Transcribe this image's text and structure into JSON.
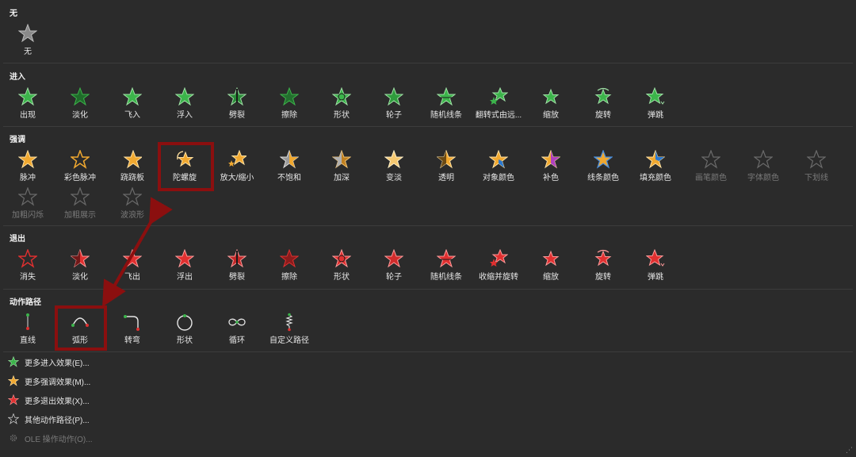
{
  "sections": {
    "none": {
      "title": "无",
      "items": [
        {
          "label": "无",
          "icon": "star-gray-icon"
        }
      ]
    },
    "entrance": {
      "title": "进入",
      "items": [
        {
          "label": "出现",
          "icon": "star-green-icon"
        },
        {
          "label": "淡化",
          "icon": "star-green-icon"
        },
        {
          "label": "飞入",
          "icon": "star-green-icon"
        },
        {
          "label": "浮入",
          "icon": "star-green-icon"
        },
        {
          "label": "劈裂",
          "icon": "star-green-icon"
        },
        {
          "label": "擦除",
          "icon": "star-green-icon"
        },
        {
          "label": "形状",
          "icon": "star-green-icon"
        },
        {
          "label": "轮子",
          "icon": "star-green-icon"
        },
        {
          "label": "随机线条",
          "icon": "star-green-icon"
        },
        {
          "label": "翻转式由远...",
          "icon": "star-green-icon"
        },
        {
          "label": "缩放",
          "icon": "star-green-icon"
        },
        {
          "label": "旋转",
          "icon": "star-green-icon"
        },
        {
          "label": "弹跳",
          "icon": "star-green-icon"
        }
      ]
    },
    "emphasis": {
      "title": "强调",
      "items": [
        {
          "label": "脉冲",
          "icon": "star-gold-icon"
        },
        {
          "label": "彩色脉冲",
          "icon": "star-gold-icon"
        },
        {
          "label": "跷跷板",
          "icon": "star-gold-icon"
        },
        {
          "label": "陀螺旋",
          "icon": "star-gold-spin-icon"
        },
        {
          "label": "放大/缩小",
          "icon": "star-gold-icon"
        },
        {
          "label": "不饱和",
          "icon": "star-gold-icon"
        },
        {
          "label": "加深",
          "icon": "star-gold-icon"
        },
        {
          "label": "变淡",
          "icon": "star-gold-icon"
        },
        {
          "label": "透明",
          "icon": "star-gold-icon"
        },
        {
          "label": "对象颜色",
          "icon": "star-gold-icon"
        },
        {
          "label": "补色",
          "icon": "star-gold-icon"
        },
        {
          "label": "线条颜色",
          "icon": "star-gold-icon"
        },
        {
          "label": "填充颜色",
          "icon": "star-gold-icon"
        },
        {
          "label": "画笔颜色",
          "icon": "star-outline-icon"
        },
        {
          "label": "字体颜色",
          "icon": "star-outline-icon"
        },
        {
          "label": "下划线",
          "icon": "star-outline-icon"
        },
        {
          "label": "加粗闪烁",
          "icon": "star-outline-icon"
        },
        {
          "label": "加粗展示",
          "icon": "star-outline-icon"
        },
        {
          "label": "波浪形",
          "icon": "star-outline-icon"
        }
      ]
    },
    "exit": {
      "title": "退出",
      "items": [
        {
          "label": "消失",
          "icon": "star-red-icon"
        },
        {
          "label": "淡化",
          "icon": "star-red-icon"
        },
        {
          "label": "飞出",
          "icon": "star-red-icon"
        },
        {
          "label": "浮出",
          "icon": "star-red-icon"
        },
        {
          "label": "劈裂",
          "icon": "star-red-icon"
        },
        {
          "label": "擦除",
          "icon": "star-red-icon"
        },
        {
          "label": "形状",
          "icon": "star-red-icon"
        },
        {
          "label": "轮子",
          "icon": "star-red-icon"
        },
        {
          "label": "随机线条",
          "icon": "star-red-icon"
        },
        {
          "label": "收缩并旋转",
          "icon": "star-red-icon"
        },
        {
          "label": "缩放",
          "icon": "star-red-icon"
        },
        {
          "label": "旋转",
          "icon": "star-red-icon"
        },
        {
          "label": "弹跳",
          "icon": "star-red-icon"
        }
      ]
    },
    "motion": {
      "title": "动作路径",
      "items": [
        {
          "label": "直线",
          "icon": "path-line-icon"
        },
        {
          "label": "弧形",
          "icon": "path-arc-icon"
        },
        {
          "label": "转弯",
          "icon": "path-turn-icon"
        },
        {
          "label": "形状",
          "icon": "path-shape-icon"
        },
        {
          "label": "循环",
          "icon": "path-loop-icon"
        },
        {
          "label": "自定义路径",
          "icon": "path-custom-icon"
        }
      ]
    }
  },
  "menu": [
    {
      "label": "更多进入效果(E)...",
      "icon": "star-green-icon"
    },
    {
      "label": "更多强调效果(M)...",
      "icon": "star-gold-icon"
    },
    {
      "label": "更多退出效果(X)...",
      "icon": "star-red-icon"
    },
    {
      "label": "其他动作路径(P)...",
      "icon": "star-outline-icon"
    },
    {
      "label": "OLE 操作动作(O)...",
      "icon": "gear-icon"
    }
  ],
  "colors": {
    "background": "#2b2b2b",
    "green": "#3cb44b",
    "gold": "#f0a830",
    "red": "#e03030",
    "highlight": "#8b0f0f"
  }
}
